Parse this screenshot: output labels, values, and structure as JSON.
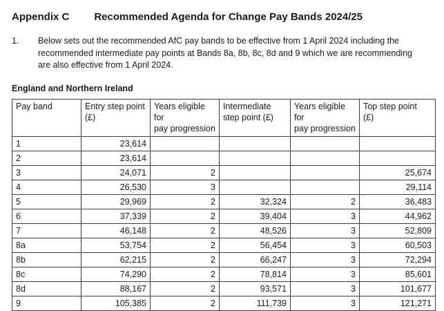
{
  "page": {
    "appendix_label": "Appendix C",
    "title": "Recommended Agenda for Change Pay Bands 2024/25",
    "paragraph_number": "1.",
    "paragraph_text": "Below sets out the recommended AfC pay bands to be effective from 1 April 2024 including the recommended intermediate pay points at Bands 8a, 8b, 8c, 8d and 9 which we are recommending are also effective from 1 April 2024.",
    "section_heading": "England and Northern Ireland"
  },
  "table": {
    "headers": [
      "Pay band",
      "Entry step point\n(£)",
      "Years eligible for\npay progression",
      "Intermediate\nstep point (£)",
      "Years eligible for\npay progression",
      "Top step point\n(£)"
    ],
    "rows": [
      [
        "1",
        "23,614",
        "",
        "",
        "",
        ""
      ],
      [
        "2",
        "23,614",
        "",
        "",
        "",
        ""
      ],
      [
        "3",
        "24,071",
        "2",
        "",
        "",
        "25,674"
      ],
      [
        "4",
        "26,530",
        "3",
        "",
        "",
        "29,114"
      ],
      [
        "5",
        "29,969",
        "2",
        "32,324",
        "2",
        "36,483"
      ],
      [
        "6",
        "37,339",
        "2",
        "39,404",
        "3",
        "44,962"
      ],
      [
        "7",
        "46,148",
        "2",
        "48,526",
        "3",
        "52,809"
      ],
      [
        "8a",
        "53,754",
        "2",
        "56,454",
        "3",
        "60,503"
      ],
      [
        "8b",
        "62,215",
        "2",
        "66,247",
        "3",
        "72,294"
      ],
      [
        "8c",
        "74,290",
        "2",
        "78,814",
        "3",
        "85,601"
      ],
      [
        "8d",
        "88,167",
        "2",
        "93,571",
        "3",
        "101,677"
      ],
      [
        "9",
        "105,385",
        "2",
        "111,739",
        "3",
        "121,271"
      ]
    ]
  }
}
